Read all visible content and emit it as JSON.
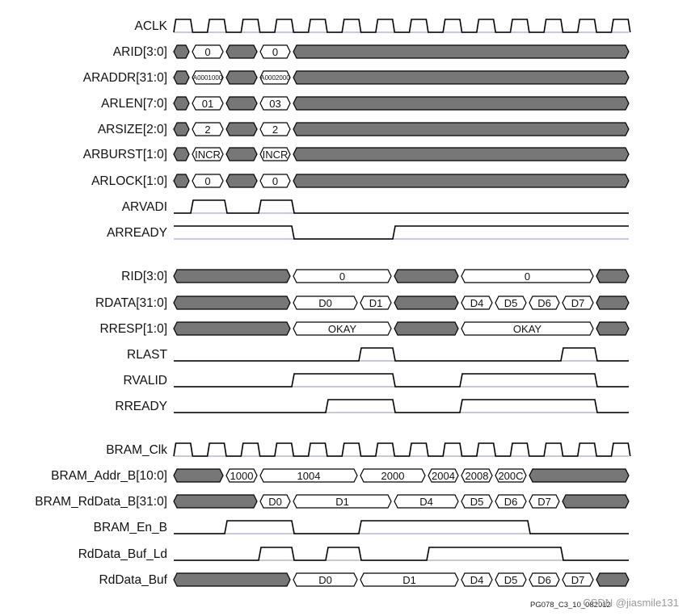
{
  "diagram": {
    "signals": [
      {
        "name": "ACLK",
        "type": "clock",
        "x0": 215,
        "period": 41.65,
        "count": 14
      },
      {
        "name": "ARID[3:0]",
        "type": "bus",
        "segs": [
          [
            215,
            236,
            "x",
            ""
          ],
          [
            236,
            278,
            "v",
            "0"
          ],
          [
            278,
            320,
            "x",
            ""
          ],
          [
            320,
            361,
            "v",
            "0"
          ],
          [
            361,
            778,
            "x",
            ""
          ]
        ]
      },
      {
        "name": "ARADDR[31:0]",
        "type": "bus",
        "small": true,
        "segs": [
          [
            215,
            236,
            "x",
            ""
          ],
          [
            236,
            278,
            "v",
            "A0001000"
          ],
          [
            278,
            320,
            "x",
            ""
          ],
          [
            320,
            361,
            "v",
            "A0002000"
          ],
          [
            361,
            778,
            "x",
            ""
          ]
        ]
      },
      {
        "name": "ARLEN[7:0]",
        "type": "bus",
        "segs": [
          [
            215,
            236,
            "x",
            ""
          ],
          [
            236,
            278,
            "v",
            "01"
          ],
          [
            278,
            320,
            "x",
            ""
          ],
          [
            320,
            361,
            "v",
            "03"
          ],
          [
            361,
            778,
            "x",
            ""
          ]
        ]
      },
      {
        "name": "ARSIZE[2:0]",
        "type": "bus",
        "segs": [
          [
            215,
            236,
            "x",
            ""
          ],
          [
            236,
            278,
            "v",
            "2"
          ],
          [
            278,
            320,
            "x",
            ""
          ],
          [
            320,
            361,
            "v",
            "2"
          ],
          [
            361,
            778,
            "x",
            ""
          ]
        ]
      },
      {
        "name": "ARBURST[1:0]",
        "type": "bus",
        "segs": [
          [
            215,
            236,
            "x",
            ""
          ],
          [
            236,
            278,
            "v",
            "INCR"
          ],
          [
            278,
            320,
            "x",
            ""
          ],
          [
            320,
            361,
            "v",
            "INCR"
          ],
          [
            361,
            778,
            "x",
            ""
          ]
        ]
      },
      {
        "name": "ARLOCK[1:0]",
        "type": "bus",
        "segs": [
          [
            215,
            236,
            "x",
            ""
          ],
          [
            236,
            278,
            "v",
            "0"
          ],
          [
            278,
            320,
            "x",
            ""
          ],
          [
            320,
            361,
            "v",
            "0"
          ],
          [
            361,
            778,
            "x",
            ""
          ]
        ]
      },
      {
        "name": "ARVADI",
        "type": "bit",
        "start": 0,
        "edges": [
          236,
          278,
          320,
          361
        ]
      },
      {
        "name": "ARREADY",
        "type": "bit",
        "start": 1,
        "edges": [
          361,
          486
        ]
      },
      {
        "name": "RID[3:0]",
        "type": "bus",
        "segs": [
          [
            215,
            361,
            "x",
            ""
          ],
          [
            361,
            486,
            "v",
            "0"
          ],
          [
            486,
            569,
            "x",
            ""
          ],
          [
            569,
            736,
            "v",
            "0"
          ],
          [
            736,
            778,
            "x",
            ""
          ]
        ]
      },
      {
        "name": "RDATA[31:0]",
        "type": "bus",
        "segs": [
          [
            215,
            361,
            "x",
            ""
          ],
          [
            361,
            444,
            "v",
            "D0"
          ],
          [
            444,
            486,
            "v",
            "D1"
          ],
          [
            486,
            569,
            "x",
            ""
          ],
          [
            569,
            611,
            "v",
            "D4"
          ],
          [
            611,
            653,
            "v",
            "D5"
          ],
          [
            653,
            694,
            "v",
            "D6"
          ],
          [
            694,
            736,
            "v",
            "D7"
          ],
          [
            736,
            778,
            "x",
            ""
          ]
        ]
      },
      {
        "name": "RRESP[1:0]",
        "type": "bus",
        "segs": [
          [
            215,
            361,
            "x",
            ""
          ],
          [
            361,
            486,
            "v",
            "OKAY"
          ],
          [
            486,
            569,
            "x",
            ""
          ],
          [
            569,
            736,
            "v",
            "OKAY"
          ],
          [
            736,
            778,
            "x",
            ""
          ]
        ]
      },
      {
        "name": "RLAST",
        "type": "bit",
        "start": 0,
        "edges": [
          444,
          486,
          694,
          736
        ]
      },
      {
        "name": "RVALID",
        "type": "bit",
        "start": 0,
        "edges": [
          361,
          486,
          569,
          736
        ]
      },
      {
        "name": "RREADY",
        "type": "bit",
        "start": 0,
        "edges": [
          403,
          486,
          569,
          736
        ]
      },
      {
        "name": "BRAM_Clk",
        "type": "clock",
        "x0": 215,
        "period": 41.65,
        "count": 14
      },
      {
        "name": "BRAM_Addr_B[10:0]",
        "type": "bus",
        "segs": [
          [
            215,
            278,
            "x",
            ""
          ],
          [
            278,
            320,
            "v",
            "1000"
          ],
          [
            320,
            444,
            "v",
            "1004"
          ],
          [
            444,
            528,
            "v",
            "2000"
          ],
          [
            528,
            569,
            "v",
            "2004"
          ],
          [
            569,
            611,
            "v",
            "2008"
          ],
          [
            611,
            653,
            "v",
            "200C"
          ],
          [
            653,
            778,
            "x",
            ""
          ]
        ]
      },
      {
        "name": "BRAM_RdData_B[31:0]",
        "type": "bus",
        "segs": [
          [
            215,
            320,
            "x",
            ""
          ],
          [
            320,
            361,
            "v",
            "D0"
          ],
          [
            361,
            486,
            "v",
            "D1"
          ],
          [
            486,
            569,
            "v",
            "D4"
          ],
          [
            569,
            611,
            "v",
            "D5"
          ],
          [
            611,
            653,
            "v",
            "D6"
          ],
          [
            653,
            694,
            "v",
            "D7"
          ],
          [
            694,
            778,
            "x",
            ""
          ]
        ]
      },
      {
        "name": "BRAM_En_B",
        "type": "bit",
        "start": 0,
        "edges": [
          278,
          361,
          444,
          653
        ]
      },
      {
        "name": "RdData_Buf_Ld",
        "type": "bit",
        "start": 0,
        "edges": [
          320,
          361,
          403,
          444,
          528,
          694
        ]
      },
      {
        "name": "RdData_Buf",
        "type": "bus",
        "segs": [
          [
            215,
            361,
            "x",
            ""
          ],
          [
            361,
            444,
            "v",
            "D0"
          ],
          [
            444,
            569,
            "v",
            "D1"
          ],
          [
            569,
            611,
            "v",
            "D4"
          ],
          [
            611,
            653,
            "v",
            "D5"
          ],
          [
            653,
            694,
            "v",
            "D6"
          ],
          [
            694,
            736,
            "v",
            "D7"
          ],
          [
            736,
            778,
            "x",
            ""
          ]
        ]
      }
    ],
    "footer": "PG078_C3_10_082012",
    "watermark": "CSDN @jiasmile131"
  }
}
